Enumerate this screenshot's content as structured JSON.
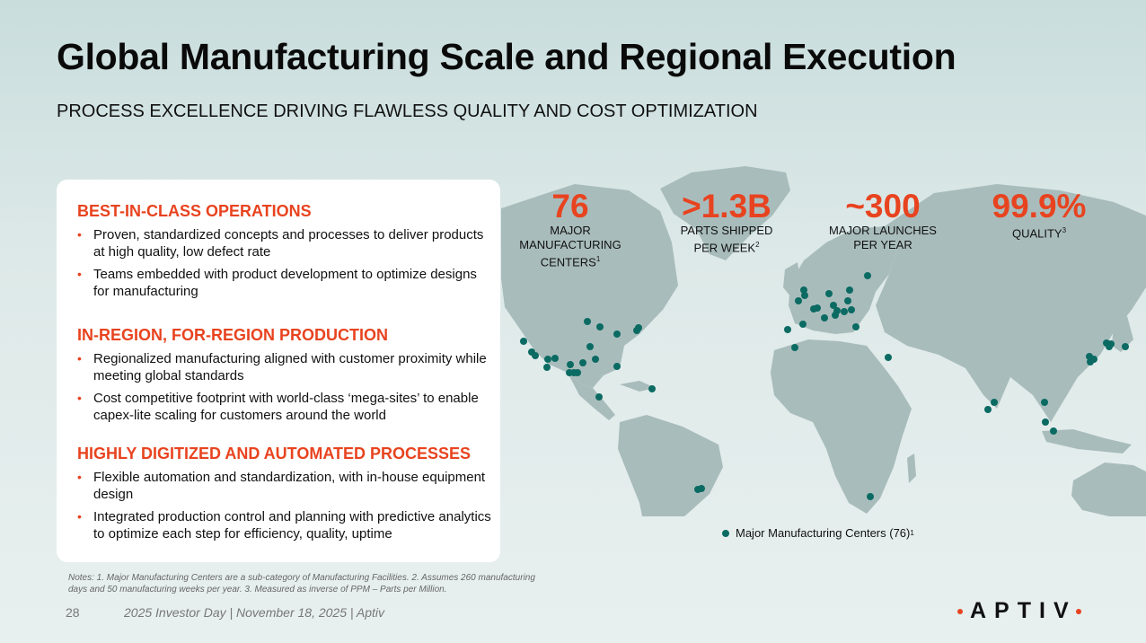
{
  "slide": {
    "title": "Global Manufacturing Scale and Regional Execution",
    "subtitle": "PROCESS EXCELLENCE DRIVING FLAWLESS QUALITY AND COST OPTIMIZATION"
  },
  "sections": [
    {
      "heading": "BEST-IN-CLASS OPERATIONS",
      "bullets": [
        "Proven, standardized concepts and processes to deliver products at high quality, low defect rate",
        "Teams embedded with product development to optimize designs for manufacturing"
      ]
    },
    {
      "heading": "IN-REGION, FOR-REGION PRODUCTION",
      "bullets": [
        "Regionalized manufacturing aligned with customer proximity while meeting global standards",
        "Cost competitive footprint with world-class ‘mega-sites’ to enable capex-lite scaling for customers around the world"
      ]
    },
    {
      "heading": "HIGHLY DIGITIZED AND AUTOMATED PROCESSES",
      "bullets": [
        "Flexible automation and standardization, with in-house equipment design",
        "Integrated production control and planning with predictive analytics to optimize each step for efficiency, quality, uptime"
      ]
    }
  ],
  "stats": [
    {
      "value": "76",
      "label_lines": [
        "MAJOR",
        "MANUFACTURING",
        "CENTERS"
      ],
      "footnote": "1"
    },
    {
      "value": ">1.3B",
      "label_lines": [
        "PARTS SHIPPED",
        "PER WEEK"
      ],
      "footnote": "2"
    },
    {
      "value": "~300",
      "label_lines": [
        "MAJOR LAUNCHES",
        "PER YEAR"
      ],
      "footnote": ""
    },
    {
      "value": "99.9%",
      "label_lines": [
        "QUALITY"
      ],
      "footnote": "3"
    }
  ],
  "legend": {
    "label": "Major Manufacturing Centers (76)",
    "footnote": "1"
  },
  "notes": "Notes: 1. Major Manufacturing Centers are a sub-category of Manufacturing Facilities. 2. Assumes 260 manufacturing days and 50 manufacturing weeks per year. 3. Measured as inverse of PPM – Parts per Million.",
  "footer": {
    "page_number": "28",
    "event": "2025 Investor Day | November 18, 2025 | Aptiv"
  },
  "logo": {
    "text": "APTIV"
  },
  "colors": {
    "accent": "#e8431f",
    "marker": "#0b6b63",
    "land": "#a9bcbc"
  }
}
